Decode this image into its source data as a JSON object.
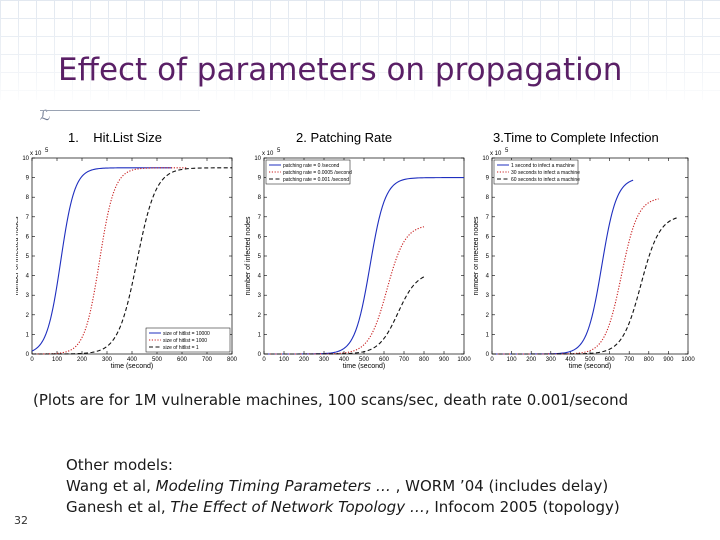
{
  "slide": {
    "title": "Effect of parameters on propagation",
    "page_number": "32",
    "title_color": "#5a1f66"
  },
  "plots": {
    "hitlist": {
      "label_num": "1.",
      "label_text": "Hit.List Size",
      "xlabel": "time (second)",
      "ylabel": "number of infected nodes",
      "exponent": "x 10",
      "exponent_power": "5",
      "xticks": [
        "0",
        "100",
        "200",
        "300",
        "400",
        "500",
        "600",
        "700",
        "800"
      ],
      "yticks": [
        "0",
        "1",
        "2",
        "3",
        "4",
        "5",
        "6",
        "7",
        "8",
        "9",
        "10"
      ],
      "legend": [
        "size of hitlist = 10000",
        "size of hitlist = 1000",
        "size of hitlist = 1"
      ]
    },
    "patching": {
      "label_text": "2. Patching Rate",
      "xlabel": "time (second)",
      "ylabel": "number of infected nodes",
      "exponent": "x 10",
      "exponent_power": "5",
      "xticks": [
        "0",
        "100",
        "200",
        "300",
        "400",
        "500",
        "600",
        "700",
        "800",
        "900",
        "1000"
      ],
      "yticks": [
        "0",
        "1",
        "2",
        "3",
        "4",
        "5",
        "6",
        "7",
        "8",
        "9",
        "10"
      ],
      "legend": [
        "patching rate = 0 /second",
        "patching rate = 0.0005 /second",
        "patching rate = 0.001 /second"
      ]
    },
    "time_complete": {
      "label_text": "3.Time to Complete Infection",
      "xlabel": "time (second)",
      "ylabel": "number of infected nodes",
      "exponent": "x 10",
      "exponent_power": "5",
      "xticks": [
        "0",
        "100",
        "200",
        "300",
        "400",
        "500",
        "600",
        "700",
        "800",
        "900",
        "1000"
      ],
      "yticks": [
        "0",
        "1",
        "2",
        "3",
        "4",
        "5",
        "6",
        "7",
        "8",
        "9",
        "10"
      ],
      "legend": [
        "1 second to infect a machine",
        "30 seconds to infect a machine",
        "60 seconds to infect a machine"
      ]
    }
  },
  "chart_data": [
    {
      "type": "line",
      "title": "Hit.List Size",
      "xlabel": "time (second)",
      "ylabel": "number of infected nodes (x 10^5)",
      "xlim": [
        0,
        800
      ],
      "ylim": [
        0,
        10
      ],
      "series": [
        {
          "name": "size of hitlist = 10000",
          "style": "solid",
          "color": "#1f2fbf",
          "logistic": {
            "K": 9.5,
            "mid": 115,
            "scale": 28
          },
          "end_x": 560
        },
        {
          "name": "size of hitlist = 1000",
          "style": "dotted",
          "color": "#c81e1e",
          "logistic": {
            "K": 9.5,
            "mid": 270,
            "scale": 30
          },
          "end_x": 620
        },
        {
          "name": "size of hitlist = 1",
          "style": "dashed",
          "color": "#111111",
          "logistic": {
            "K": 9.5,
            "mid": 420,
            "scale": 38
          },
          "end_x": 800
        }
      ]
    },
    {
      "type": "line",
      "title": "Patching Rate",
      "xlabel": "time (second)",
      "ylabel": "number of infected nodes (x 10^5)",
      "xlim": [
        0,
        1000
      ],
      "ylim": [
        0,
        10
      ],
      "series": [
        {
          "name": "patching rate = 0 /second",
          "style": "solid",
          "color": "#1f2fbf",
          "logistic": {
            "K": 9.0,
            "mid": 530,
            "scale": 38
          },
          "end_x": 1000
        },
        {
          "name": "patching rate = 0.0005 /second",
          "style": "dotted",
          "color": "#c81e1e",
          "logistic": {
            "K": 6.6,
            "mid": 615,
            "scale": 45
          },
          "end_x": 800
        },
        {
          "name": "patching rate = 0.001 /second",
          "style": "dashed",
          "color": "#111111",
          "logistic": {
            "K": 4.2,
            "mid": 670,
            "scale": 48
          },
          "end_x": 800
        }
      ]
    },
    {
      "type": "line",
      "title": "Time to Complete Infection",
      "xlabel": "time (second)",
      "ylabel": "number of infected nodes (x 10^5)",
      "xlim": [
        0,
        1000
      ],
      "ylim": [
        0,
        10
      ],
      "series": [
        {
          "name": "1 second to infect a machine",
          "style": "solid",
          "color": "#1f2fbf",
          "logistic": {
            "K": 9.0,
            "mid": 560,
            "scale": 38
          },
          "end_x": 720
        },
        {
          "name": "30 seconds to infect a machine",
          "style": "dotted",
          "color": "#c81e1e",
          "logistic": {
            "K": 8.0,
            "mid": 660,
            "scale": 42
          },
          "end_x": 850
        },
        {
          "name": "60 seconds to infect a machine",
          "style": "dashed",
          "color": "#111111",
          "logistic": {
            "K": 7.1,
            "mid": 760,
            "scale": 48
          },
          "end_x": 950
        }
      ]
    }
  ],
  "caption": "(Plots are for 1M vulnerable machines, 100 scans/sec, death rate 0.001/second",
  "other_models": {
    "heading": "Other models:",
    "line1_prefix": "Wang et al, ",
    "line1_italic": "Modeling Timing Parameters … ",
    "line1_suffix": ", WORM ’04 (includes delay)",
    "line2_prefix": "Ganesh et al, ",
    "line2_italic": "The Effect of Network Topology …",
    "line2_suffix": ", Infocom 2005 (topology)"
  }
}
